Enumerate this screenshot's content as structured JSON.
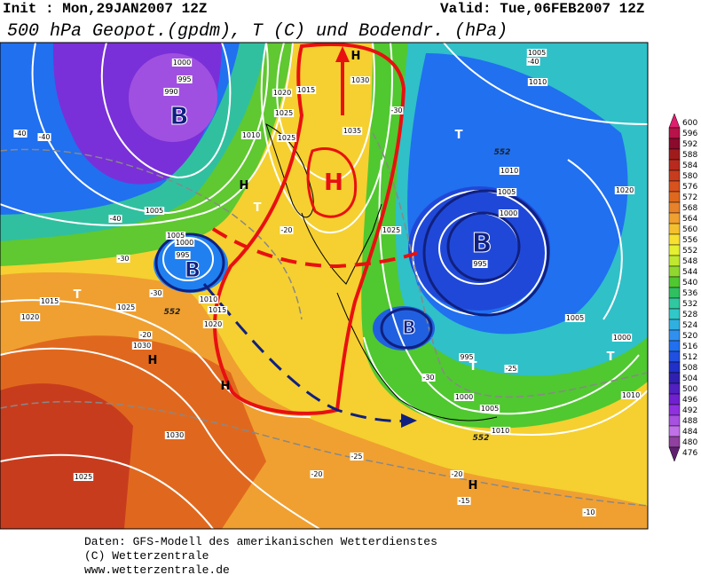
{
  "header": {
    "init": "Init : Mon,29JAN2007 12Z",
    "valid": "Valid: Tue,06FEB2007 12Z",
    "title": "500 hPa Geopot.(gpdm), T (C) und Bodendr. (hPa)"
  },
  "colorbar": {
    "labels": [
      600,
      596,
      592,
      588,
      584,
      580,
      576,
      572,
      568,
      564,
      560,
      556,
      552,
      548,
      544,
      540,
      536,
      532,
      528,
      524,
      520,
      516,
      512,
      508,
      504,
      500,
      496,
      492,
      488,
      484,
      480,
      476
    ],
    "colors": [
      "#e01e6e",
      "#b8124a",
      "#8c0a2c",
      "#a01c1c",
      "#b82a1e",
      "#c83c1e",
      "#d8521e",
      "#e0681e",
      "#e8822a",
      "#f0a030",
      "#f5c030",
      "#f8e030",
      "#e4f030",
      "#c0e830",
      "#90d830",
      "#50c830",
      "#30c060",
      "#30c8a0",
      "#30c8c8",
      "#30b0e0",
      "#3090f0",
      "#2070f0",
      "#2050e0",
      "#2030c8",
      "#3020b0",
      "#5020c0",
      "#7020d0",
      "#9030e0",
      "#a850e0",
      "#c070e8",
      "#9040a0",
      "#602070"
    ]
  },
  "map": {
    "isobar_labels": [
      1005,
      1010,
      1020,
      1015,
      1030,
      1025,
      1010,
      1025,
      1035,
      1005,
      1005,
      1000,
      995,
      1015,
      1025,
      1020,
      1010,
      1015,
      1020,
      1030,
      1010,
      1005,
      1000,
      995,
      1025,
      1020,
      1005,
      1000,
      995,
      1000,
      1005,
      1010,
      1010,
      1030,
      1025,
      1000,
      995,
      990
    ],
    "temperature_labels": [
      -40,
      -40,
      -40,
      -30,
      -30,
      -20,
      -20,
      -25,
      -20,
      -15,
      -20,
      -10,
      -30,
      -30,
      -25,
      -40
    ],
    "contour_552": [
      552,
      552,
      552
    ],
    "lows": [
      "B",
      "B",
      "B",
      "B"
    ],
    "highs": [
      "H",
      "H",
      "H",
      "H",
      "H",
      "H"
    ],
    "troughs": [
      "T",
      "T",
      "T",
      "T",
      "T"
    ]
  },
  "footer": [
    "Daten: GFS-Modell des amerikanischen Wetterdienstes",
    "(C) Wetterzentrale",
    "www.wetterzentrale.de"
  ]
}
